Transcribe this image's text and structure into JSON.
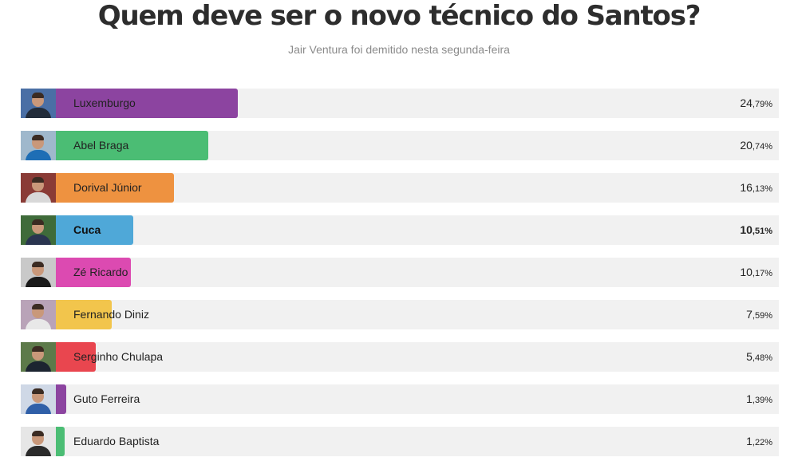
{
  "header": {
    "title": "Quem deve ser o novo técnico do Santos?",
    "subtitle": "Jair Ventura foi demitido nesta segunda-feira"
  },
  "poll": {
    "options": [
      {
        "name": "Luxemburgo",
        "int": "24",
        "dec": ",79%",
        "percent": 24.79,
        "color": "#8c44a0",
        "photo_bg": "#4a6fa5",
        "shirt": "#222c3a",
        "bold": false
      },
      {
        "name": "Abel Braga",
        "int": "20",
        "dec": ",74%",
        "percent": 20.74,
        "color": "#4bbd74",
        "photo_bg": "#9fb8cc",
        "shirt": "#1e6eb5",
        "bold": false
      },
      {
        "name": "Dorival Júnior",
        "int": "16",
        "dec": ",13%",
        "percent": 16.13,
        "color": "#ee9240",
        "photo_bg": "#8a3b36",
        "shirt": "#d8d8d8",
        "bold": false
      },
      {
        "name": "Cuca",
        "int": "10",
        "dec": ",51%",
        "percent": 10.51,
        "color": "#4fa8d8",
        "photo_bg": "#3f6b3a",
        "shirt": "#2a3550",
        "bold": true
      },
      {
        "name": "Zé Ricardo",
        "int": "10",
        "dec": ",17%",
        "percent": 10.17,
        "color": "#dc4ab1",
        "photo_bg": "#c9c9c9",
        "shirt": "#1a1a1a",
        "bold": false
      },
      {
        "name": "Fernando Diniz",
        "int": "7",
        "dec": ",59%",
        "percent": 7.59,
        "color": "#f2c54c",
        "photo_bg": "#b9a3b8",
        "shirt": "#e8e8e8",
        "bold": false
      },
      {
        "name": "Serginho Chulapa",
        "int": "5",
        "dec": ",48%",
        "percent": 5.48,
        "color": "#e9464f",
        "photo_bg": "#5d7a4a",
        "shirt": "#1c2430",
        "bold": false
      },
      {
        "name": "Guto Ferreira",
        "int": "1",
        "dec": ",39%",
        "percent": 1.39,
        "color": "#8c44a0",
        "photo_bg": "#cfd8e6",
        "shirt": "#2f5fa8",
        "bold": false
      },
      {
        "name": "Eduardo Baptista",
        "int": "1",
        "dec": ",22%",
        "percent": 1.22,
        "color": "#4bbd74",
        "photo_bg": "#e6e6e6",
        "shirt": "#2b2b2b",
        "bold": false
      }
    ]
  }
}
